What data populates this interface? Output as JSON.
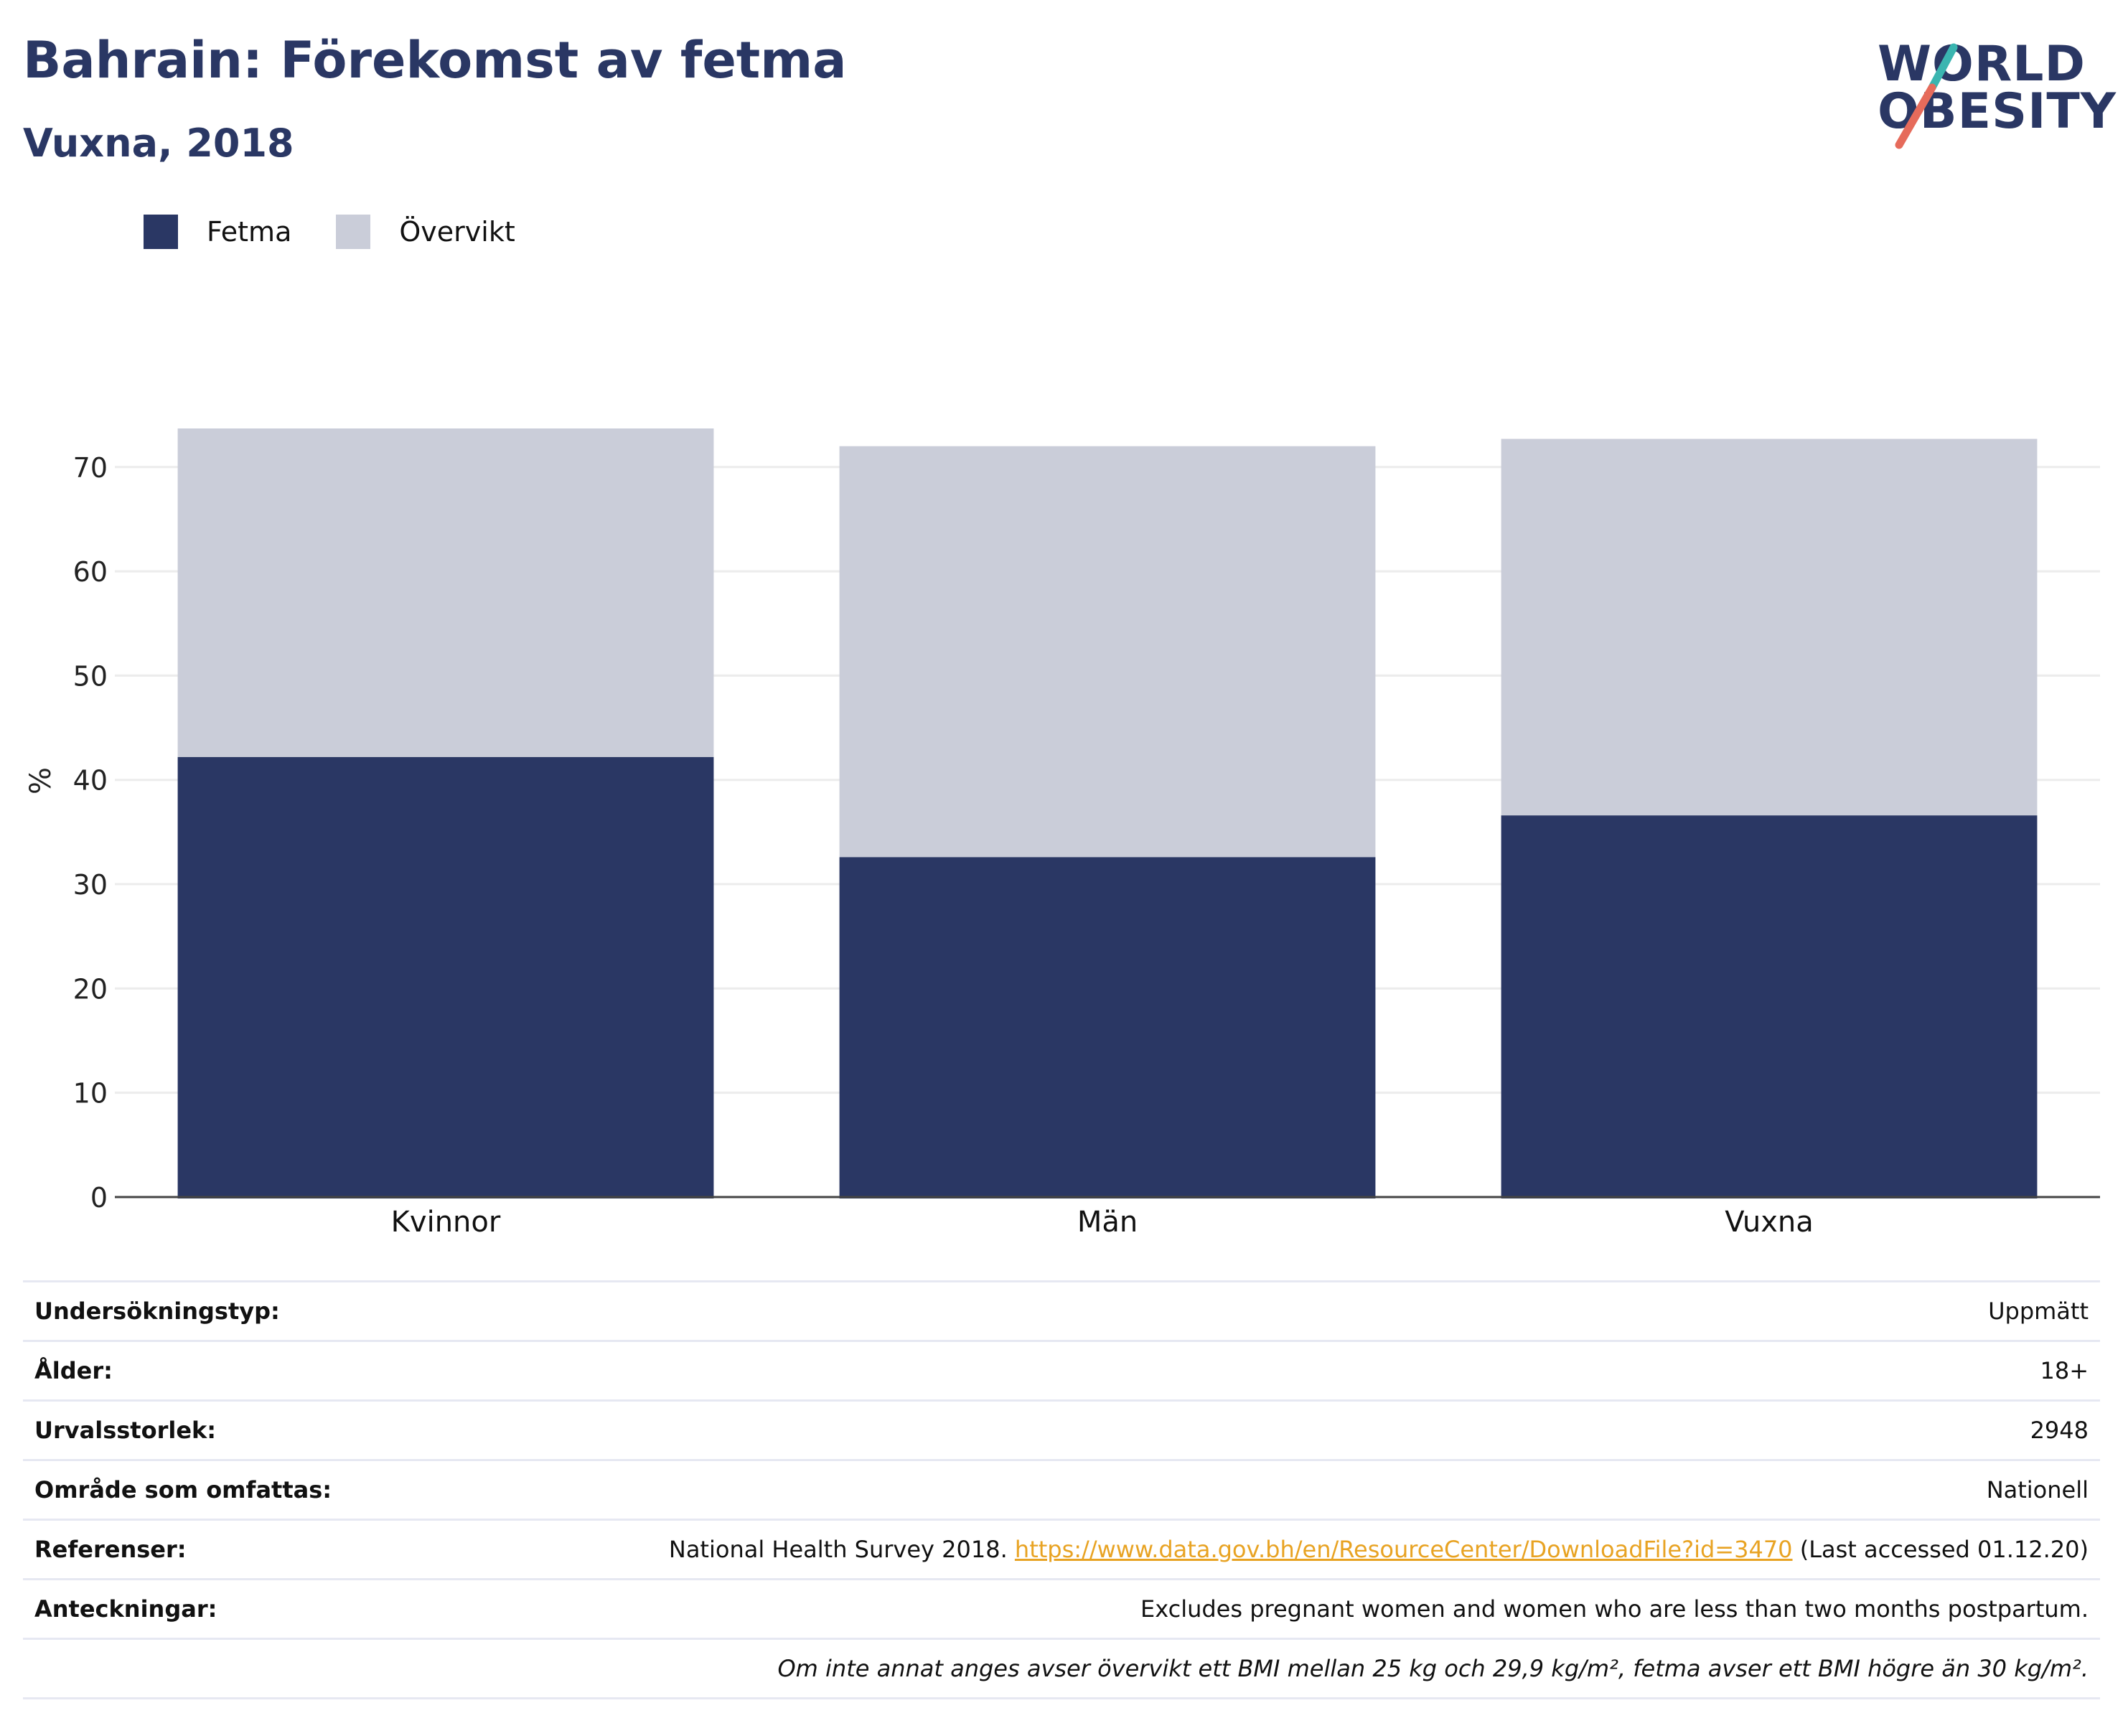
{
  "header": {
    "title": "Bahrain: Förekomst av fetma",
    "subtitle": "Vuxna, 2018"
  },
  "logo": {
    "line1": "WORLD",
    "line2": "OBESITY",
    "accent_teal": "#3ab5b0",
    "accent_coral": "#e66b5b"
  },
  "chart_data": {
    "type": "bar",
    "stacked": true,
    "categories": [
      "Kvinnor",
      "Män",
      "Vuxna"
    ],
    "series": [
      {
        "name": "Fetma",
        "color": "#2a3764",
        "values": [
          42.2,
          32.6,
          36.6
        ]
      },
      {
        "name": "Övervikt",
        "color": "#cacdd9",
        "values": [
          31.5,
          39.4,
          36.1
        ]
      }
    ],
    "ylabel": "%",
    "ylim": [
      0,
      79
    ],
    "yticks": [
      0,
      10,
      20,
      30,
      40,
      50,
      60,
      70
    ],
    "grid": true,
    "legend": "top-left"
  },
  "info_table": [
    {
      "label": "Undersökningstyp:",
      "value": "Uppmätt"
    },
    {
      "label": "Ålder:",
      "value": "18+"
    },
    {
      "label": "Urvalsstorlek:",
      "value": "2948"
    },
    {
      "label": "Område som omfattas:",
      "value": "Nationell"
    },
    {
      "label": "Referenser:",
      "value_prefix": "National Health Survey 2018. ",
      "link": "https://www.data.gov.bh/en/ResourceCenter/DownloadFile?id=3470",
      "value_suffix": " (Last accessed 01.12.20)"
    },
    {
      "label": "Anteckningar:",
      "value": "Excludes pregnant women and women who are less than two months postpartum."
    }
  ],
  "footnote": "Om inte annat anges avser övervikt ett BMI mellan 25 kg och 29,9 kg/m², fetma avser ett BMI högre än 30 kg/m²."
}
